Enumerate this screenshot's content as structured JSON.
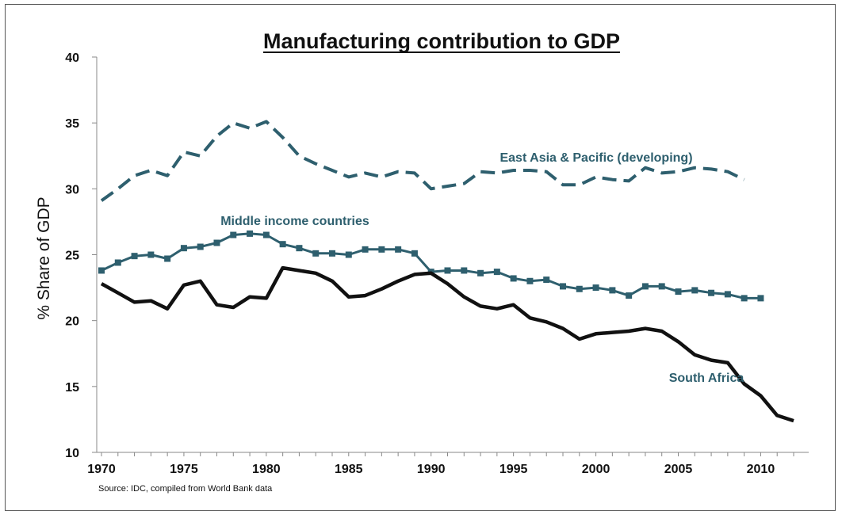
{
  "chart_data": {
    "type": "line",
    "title": "Manufacturing contribution to GDP",
    "ylabel": "% Share of GDP",
    "xlabel": "",
    "xlim": [
      1970,
      2012
    ],
    "ylim": [
      10,
      40
    ],
    "yticks": [
      10,
      15,
      20,
      25,
      30,
      35,
      40
    ],
    "xticks": [
      1970,
      1975,
      1980,
      1985,
      1990,
      1995,
      2000,
      2005,
      2010
    ],
    "grid": false,
    "source": "Source: IDC, compiled from World Bank data",
    "series": [
      {
        "name": "East Asia & Pacific (developing)",
        "color": "#2e5f6e",
        "style": "dashed",
        "x": [
          1970,
          1971,
          1972,
          1973,
          1974,
          1975,
          1976,
          1977,
          1978,
          1979,
          1980,
          1981,
          1982,
          1983,
          1984,
          1985,
          1986,
          1987,
          1988,
          1989,
          1990,
          1991,
          1992,
          1993,
          1994,
          1995,
          1996,
          1997,
          1998,
          1999,
          2000,
          2001,
          2002,
          2003,
          2004,
          2005,
          2006,
          2007,
          2008,
          2009
        ],
        "values": [
          29.1,
          30.0,
          31.0,
          31.4,
          31.0,
          32.8,
          32.5,
          34.0,
          35.0,
          34.6,
          35.1,
          33.9,
          32.5,
          31.9,
          31.4,
          30.9,
          31.2,
          30.9,
          31.3,
          31.2,
          30.0,
          30.2,
          30.4,
          31.3,
          31.2,
          31.4,
          31.4,
          31.3,
          30.3,
          30.3,
          30.9,
          30.7,
          30.6,
          31.6,
          31.2,
          31.3,
          31.6,
          31.5,
          31.3,
          30.7
        ]
      },
      {
        "name": "Middle income countries",
        "color": "#2e5f6e",
        "style": "markers",
        "x": [
          1970,
          1971,
          1972,
          1973,
          1974,
          1975,
          1976,
          1977,
          1978,
          1979,
          1980,
          1981,
          1982,
          1983,
          1984,
          1985,
          1986,
          1987,
          1988,
          1989,
          1990,
          1991,
          1992,
          1993,
          1994,
          1995,
          1996,
          1997,
          1998,
          1999,
          2000,
          2001,
          2002,
          2003,
          2004,
          2005,
          2006,
          2007,
          2008,
          2009,
          2010
        ],
        "values": [
          23.8,
          24.4,
          24.9,
          25.0,
          24.7,
          25.5,
          25.6,
          25.9,
          26.5,
          26.6,
          26.5,
          25.8,
          25.5,
          25.1,
          25.1,
          25.0,
          25.4,
          25.4,
          25.4,
          25.1,
          23.7,
          23.8,
          23.8,
          23.6,
          23.7,
          23.2,
          23.0,
          23.1,
          22.6,
          22.4,
          22.5,
          22.3,
          21.9,
          22.6,
          22.6,
          22.2,
          22.3,
          22.1,
          22.0,
          21.7,
          21.7
        ]
      },
      {
        "name": "South Africa",
        "color": "#111111",
        "style": "solid",
        "x": [
          1970,
          1971,
          1972,
          1973,
          1974,
          1975,
          1976,
          1977,
          1978,
          1979,
          1980,
          1981,
          1982,
          1983,
          1984,
          1985,
          1986,
          1987,
          1988,
          1989,
          1990,
          1991,
          1992,
          1993,
          1994,
          1995,
          1996,
          1997,
          1998,
          1999,
          2000,
          2001,
          2002,
          2003,
          2004,
          2005,
          2006,
          2007,
          2008,
          2009,
          2010,
          2011,
          2012
        ],
        "values": [
          22.8,
          22.1,
          21.4,
          21.5,
          20.9,
          22.7,
          23.0,
          21.2,
          21.0,
          21.8,
          21.7,
          24.0,
          23.8,
          23.6,
          23.0,
          21.8,
          21.9,
          22.4,
          23.0,
          23.5,
          23.6,
          22.8,
          21.8,
          21.1,
          20.9,
          21.2,
          20.2,
          19.9,
          19.4,
          18.6,
          19.0,
          19.1,
          19.2,
          19.4,
          19.2,
          18.4,
          17.4,
          17.0,
          16.8,
          15.2,
          14.3,
          12.8,
          12.4
        ]
      }
    ]
  }
}
